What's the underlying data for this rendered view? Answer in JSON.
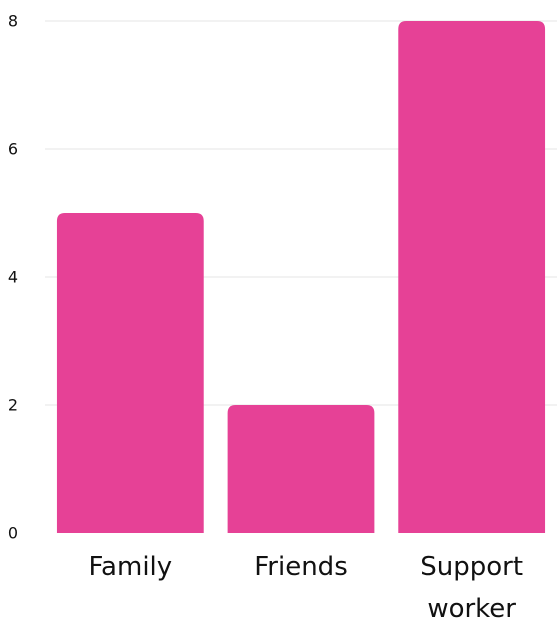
{
  "chart_data": {
    "type": "bar",
    "categories": [
      "Family",
      "Friends",
      "Support worker"
    ],
    "category_label_lines": [
      [
        "Family"
      ],
      [
        "Friends"
      ],
      [
        "Support",
        "worker"
      ]
    ],
    "values": [
      5,
      2,
      8
    ],
    "ylim": [
      0,
      8
    ],
    "yticks": [
      "0",
      "2",
      "4",
      "6",
      "8"
    ],
    "grid": true,
    "bar_color": "#e64196",
    "title": "",
    "xlabel": "",
    "ylabel": ""
  }
}
